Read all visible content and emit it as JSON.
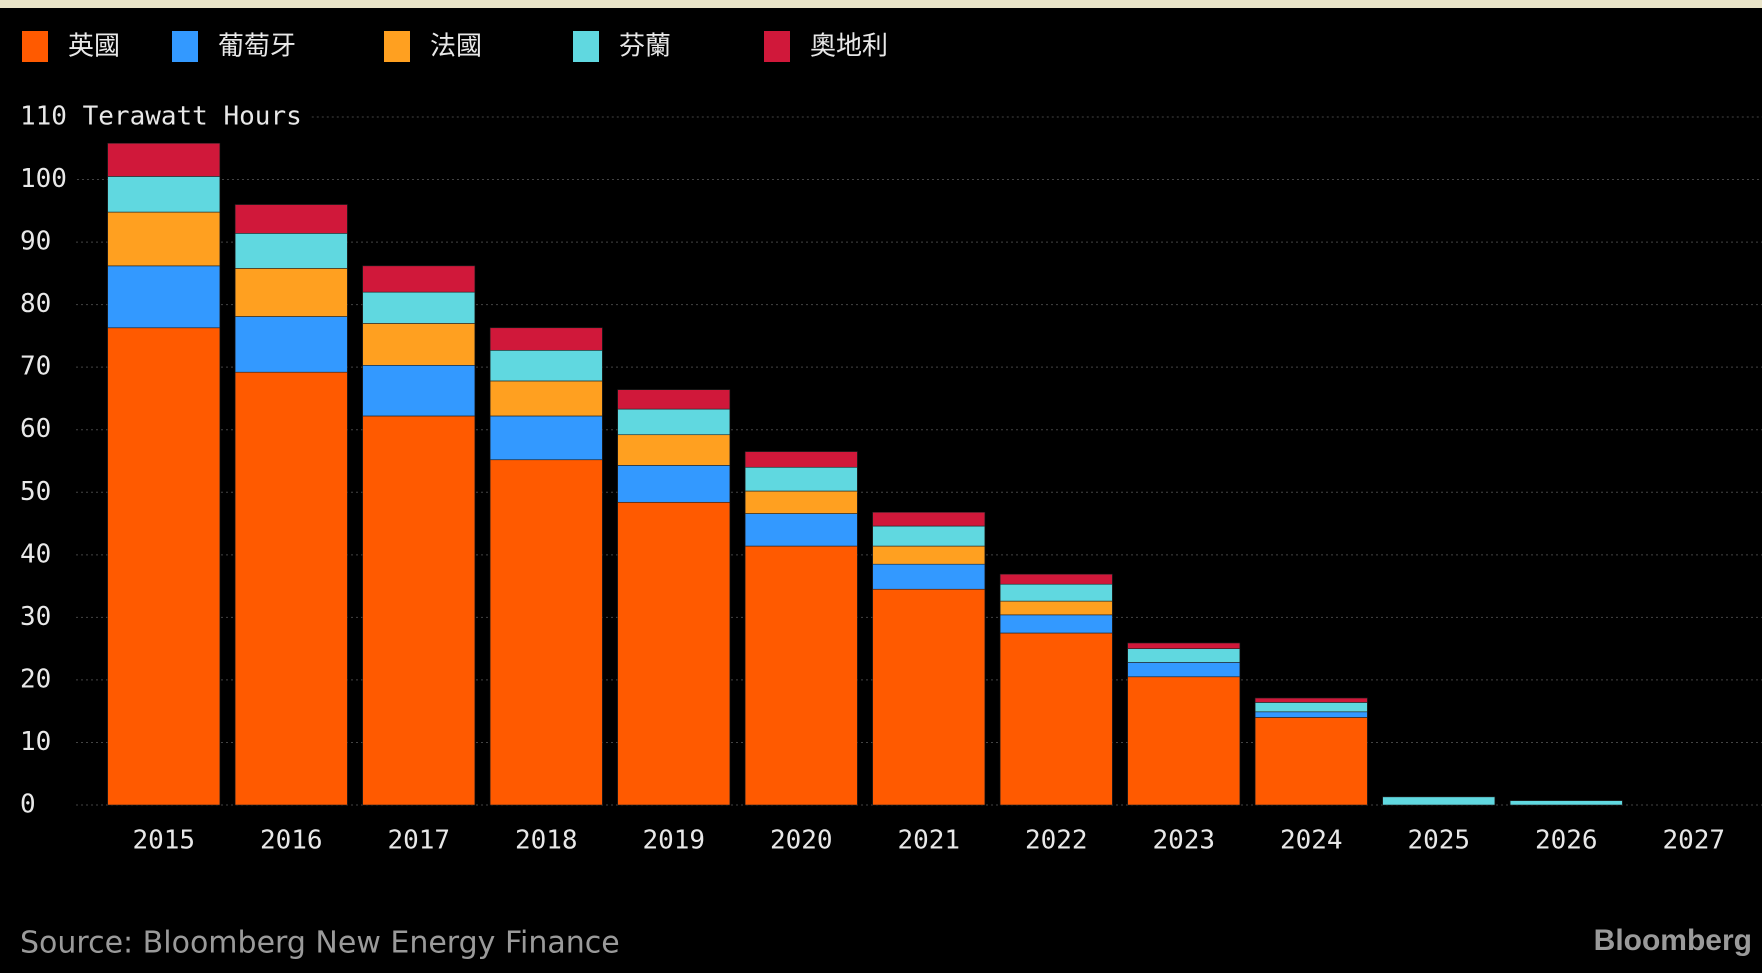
{
  "chart_data": {
    "type": "stacked_bar",
    "categories": [
      "2015",
      "2016",
      "2017",
      "2018",
      "2019",
      "2020",
      "2021",
      "2022",
      "2023",
      "2024",
      "2025",
      "2026",
      "2027"
    ],
    "series": [
      {
        "name": "英國",
        "color": "#ff5a00",
        "values": [
          76.3,
          69.2,
          62.2,
          55.2,
          48.4,
          41.4,
          34.5,
          27.5,
          20.5,
          14.0,
          0,
          0,
          0
        ]
      },
      {
        "name": "葡萄牙",
        "color": "#3399ff",
        "values": [
          9.9,
          8.9,
          8.1,
          7.0,
          5.9,
          5.2,
          4.0,
          2.9,
          2.3,
          0.9,
          0,
          0,
          0
        ]
      },
      {
        "name": "法國",
        "color": "#ffa020",
        "values": [
          8.6,
          7.7,
          6.7,
          5.6,
          4.9,
          3.6,
          2.9,
          2.2,
          0,
          0,
          0,
          0,
          0
        ]
      },
      {
        "name": "芬蘭",
        "color": "#60d8e0",
        "values": [
          5.7,
          5.6,
          5.0,
          4.9,
          4.1,
          3.8,
          3.2,
          2.7,
          2.2,
          1.5,
          1.3,
          0.7,
          0
        ]
      },
      {
        "name": "奧地利",
        "color": "#d0183a",
        "values": [
          5.3,
          4.6,
          4.2,
          3.6,
          3.1,
          2.5,
          2.2,
          1.6,
          0.9,
          0.7,
          0,
          0,
          0
        ]
      }
    ],
    "ylim": [
      0,
      110
    ],
    "yticks": [
      0,
      10,
      20,
      30,
      40,
      50,
      60,
      70,
      80,
      90,
      100,
      {
        "value": 110,
        "label": "110 Terawatt Hours"
      }
    ],
    "grid": true,
    "source": "Source: Bloomberg New Energy Finance",
    "brand": "Bloomberg"
  }
}
